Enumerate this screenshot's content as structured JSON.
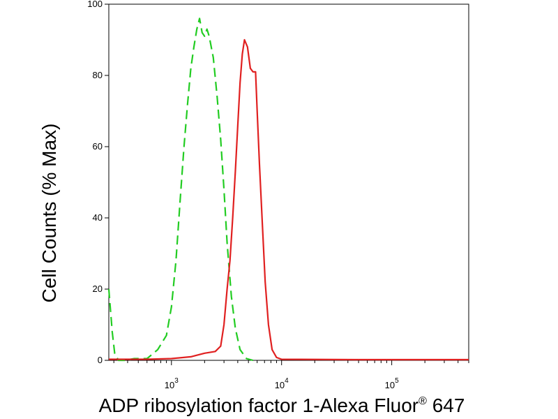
{
  "chart_data": {
    "type": "line",
    "xlabel_main": "ADP ribosylation factor 1-Alexa Fluor",
    "xlabel_sup": "®",
    "xlabel_tail": " 647",
    "ylabel": "Cell Counts (% Max)",
    "x_scale": "log",
    "xlim": [
      270,
      500000
    ],
    "ylim": [
      0,
      100
    ],
    "grid": false,
    "legend": "none",
    "y_ticks": [
      {
        "value": 0,
        "label": "0"
      },
      {
        "value": 20,
        "label": "20"
      },
      {
        "value": 40,
        "label": "40"
      },
      {
        "value": 60,
        "label": "60"
      },
      {
        "value": 80,
        "label": "80"
      },
      {
        "value": 100,
        "label": "100"
      }
    ],
    "x_ticks": [
      {
        "value": 1000,
        "base": "10",
        "exp": "3"
      },
      {
        "value": 10000,
        "base": "10",
        "exp": "4"
      },
      {
        "value": 100000,
        "base": "10",
        "exp": "5"
      }
    ],
    "series": [
      {
        "color": "#22cc22",
        "style": "dashed",
        "points": [
          [
            270,
            20
          ],
          [
            290,
            8
          ],
          [
            305,
            2
          ],
          [
            330,
            0
          ],
          [
            380,
            0
          ],
          [
            460,
            0.5
          ],
          [
            600,
            0.5
          ],
          [
            750,
            3
          ],
          [
            900,
            7
          ],
          [
            1000,
            15
          ],
          [
            1100,
            28
          ],
          [
            1200,
            45
          ],
          [
            1300,
            60
          ],
          [
            1400,
            72
          ],
          [
            1500,
            82
          ],
          [
            1600,
            88
          ],
          [
            1700,
            93
          ],
          [
            1800,
            96
          ],
          [
            1900,
            92
          ],
          [
            2000,
            91
          ],
          [
            2100,
            93
          ],
          [
            2200,
            91
          ],
          [
            2400,
            85
          ],
          [
            2600,
            74
          ],
          [
            2800,
            62
          ],
          [
            3000,
            48
          ],
          [
            3200,
            33
          ],
          [
            3500,
            18
          ],
          [
            3800,
            9
          ],
          [
            4200,
            3
          ],
          [
            4800,
            0.5
          ],
          [
            5500,
            0
          ]
        ]
      },
      {
        "color": "#e02020",
        "style": "solid",
        "points": [
          [
            270,
            0.3
          ],
          [
            600,
            0.3
          ],
          [
            1000,
            0.5
          ],
          [
            1500,
            1
          ],
          [
            2000,
            2
          ],
          [
            2500,
            2.5
          ],
          [
            2800,
            4
          ],
          [
            3000,
            10
          ],
          [
            3200,
            20
          ],
          [
            3400,
            28
          ],
          [
            3600,
            40
          ],
          [
            3800,
            53
          ],
          [
            4000,
            66
          ],
          [
            4200,
            78
          ],
          [
            4400,
            86
          ],
          [
            4600,
            90
          ],
          [
            4900,
            88
          ],
          [
            5200,
            82
          ],
          [
            5500,
            81
          ],
          [
            5800,
            81
          ],
          [
            6000,
            70
          ],
          [
            6300,
            55
          ],
          [
            6700,
            38
          ],
          [
            7100,
            22
          ],
          [
            7600,
            10
          ],
          [
            8200,
            3
          ],
          [
            9000,
            0.8
          ],
          [
            10000,
            0.3
          ],
          [
            50000,
            0.2
          ],
          [
            500000,
            0.2
          ]
        ]
      }
    ]
  }
}
